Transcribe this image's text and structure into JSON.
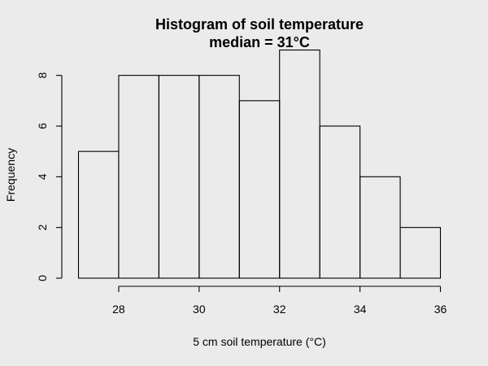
{
  "chart_data": {
    "type": "bar",
    "title": "Histogram of soil temperature",
    "subtitle": "median = 31°C",
    "xlabel": "5 cm soil temperature (°C)",
    "ylabel": "Frequency",
    "bins": [
      {
        "start": 27,
        "end": 28,
        "count": 5
      },
      {
        "start": 28,
        "end": 29,
        "count": 8
      },
      {
        "start": 29,
        "end": 30,
        "count": 8
      },
      {
        "start": 30,
        "end": 31,
        "count": 8
      },
      {
        "start": 31,
        "end": 32,
        "count": 7
      },
      {
        "start": 32,
        "end": 33,
        "count": 9
      },
      {
        "start": 33,
        "end": 34,
        "count": 6
      },
      {
        "start": 34,
        "end": 35,
        "count": 4
      },
      {
        "start": 35,
        "end": 36,
        "count": 2
      }
    ],
    "xticks": [
      28,
      30,
      32,
      34,
      36
    ],
    "yticks": [
      0,
      2,
      4,
      6,
      8
    ],
    "xlim": [
      27,
      36
    ],
    "ylim": [
      0,
      9
    ],
    "grid": false,
    "legend": "none",
    "colors": {
      "background": "#ebebeb",
      "bar_fill": "none",
      "bar_stroke": "#000000"
    }
  }
}
